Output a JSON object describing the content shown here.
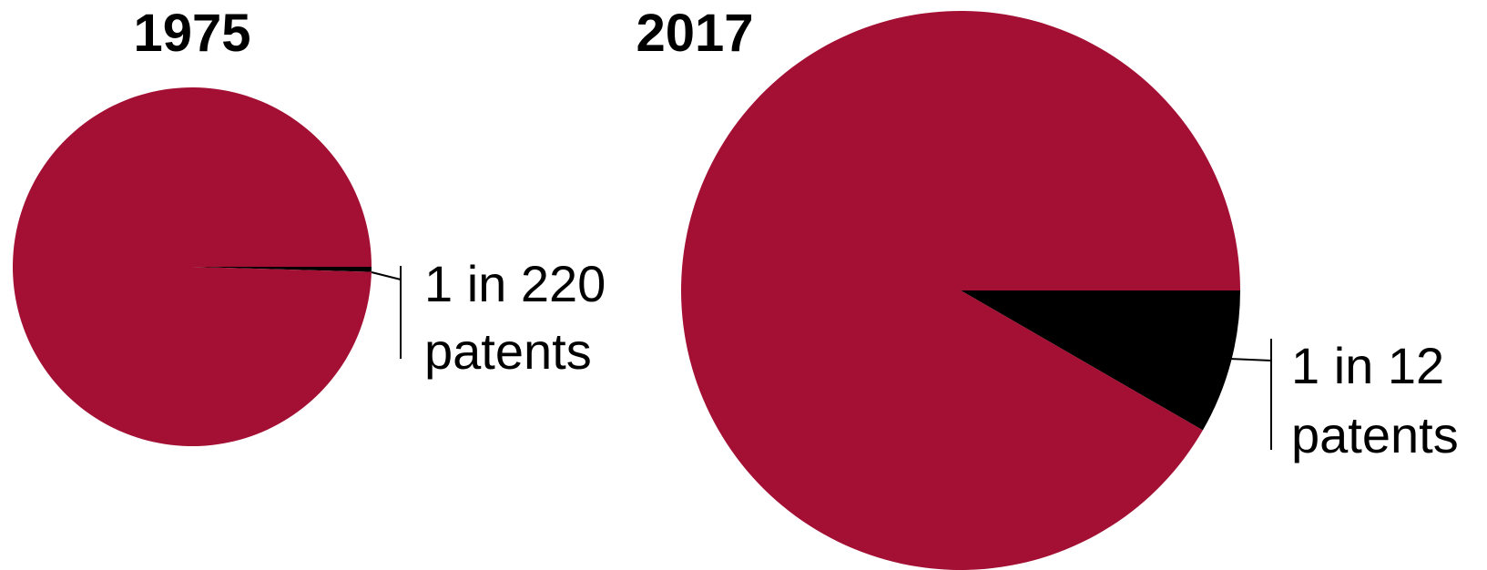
{
  "chart_data": [
    {
      "type": "pie",
      "title": "1975",
      "slices": [
        {
          "value": 219,
          "color": "#a31034"
        },
        {
          "value": 1,
          "color": "#000000"
        }
      ],
      "annotation": {
        "line1": "1 in 220",
        "line2": "patents"
      }
    },
    {
      "type": "pie",
      "title": "2017",
      "slices": [
        {
          "value": 11,
          "color": "#a31034"
        },
        {
          "value": 1,
          "color": "#000000"
        }
      ],
      "annotation": {
        "line1": "1 in 12",
        "line2": "patents"
      }
    }
  ]
}
